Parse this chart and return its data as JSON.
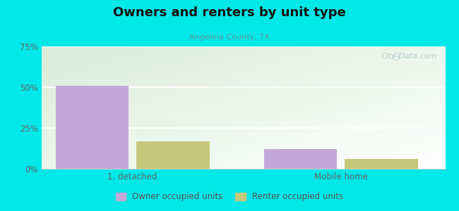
{
  "title": "Owners and renters by unit type",
  "subtitle": "Angelina County, TX",
  "categories": [
    "1, detached",
    "Mobile home"
  ],
  "owner_values": [
    51.0,
    12.0
  ],
  "renter_values": [
    17.0,
    6.0
  ],
  "owner_color": "#c2a8d8",
  "renter_color": "#c5c87a",
  "owner_label": "Owner occupied units",
  "renter_label": "Renter occupied units",
  "ylim": [
    0,
    75
  ],
  "yticks": [
    0,
    25,
    50,
    75
  ],
  "yticklabels": [
    "0%",
    "25%",
    "50%",
    "75%"
  ],
  "background_color": "#00e8e8",
  "watermark": "City-Data.com",
  "bar_width": 0.28,
  "group_centers": [
    0.35,
    1.15
  ]
}
